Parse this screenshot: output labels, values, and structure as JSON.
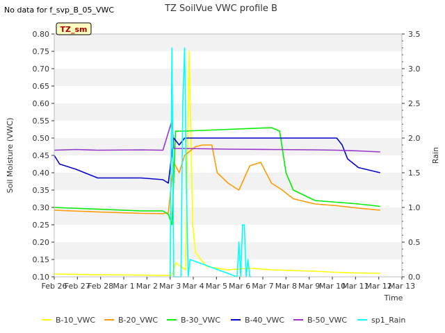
{
  "top_note": "No data for f_svp_B_05_VWC",
  "chart_data": {
    "type": "line",
    "title": "TZ SoilVue VWC profile B",
    "badge": "TZ_sm",
    "xlabel": "Time",
    "ylabel": "Soil Moisture (VWC)",
    "y2label": "Rain",
    "x_ticks": [
      "Feb 26",
      "Feb 27",
      "Feb 28",
      "Mar 1",
      "Mar 2",
      "Mar 3",
      "Mar 4",
      "Mar 5",
      "Mar 6",
      "Mar 7",
      "Mar 8",
      "Mar 9",
      "Mar 10",
      "Mar 11",
      "Mar 12",
      "Mar 13"
    ],
    "xlim": [
      "2024-02-26",
      "2024-03-13"
    ],
    "ylim": [
      0.1,
      0.8
    ],
    "y_ticks": [
      "0.10",
      "0.15",
      "0.20",
      "0.25",
      "0.30",
      "0.35",
      "0.40",
      "0.45",
      "0.50",
      "0.55",
      "0.60",
      "0.65",
      "0.70",
      "0.75",
      "0.80"
    ],
    "y2lim": [
      0.0,
      3.5
    ],
    "y2_ticks": [
      "0.0",
      "0.5",
      "1.0",
      "1.5",
      "2.0",
      "2.5",
      "3.0",
      "3.5"
    ],
    "grid": "horizontal bands",
    "legend_position": "bottom",
    "series": [
      {
        "name": "B-10_VWC",
        "color": "#ffff00",
        "axis": "left",
        "x": [
          "2024-02-26",
          "2024-02-28",
          "2024-03-01",
          "2024-03-02",
          "2024-03-02 10:00",
          "2024-03-02 14:00",
          "2024-03-02 20:00",
          "2024-03-03 01:00",
          "2024-03-03 05:00",
          "2024-03-03 09:00",
          "2024-03-03 12:00",
          "2024-03-03 18:00",
          "2024-03-04",
          "2024-03-05",
          "2024-03-06",
          "2024-03-07",
          "2024-03-08",
          "2024-03-09",
          "2024-03-10",
          "2024-03-11",
          "2024-03-12"
        ],
        "y": [
          0.108,
          0.106,
          0.105,
          0.104,
          0.104,
          0.14,
          0.13,
          0.12,
          0.75,
          0.25,
          0.17,
          0.15,
          0.13,
          0.12,
          0.125,
          0.12,
          0.118,
          0.116,
          0.113,
          0.111,
          0.11
        ]
      },
      {
        "name": "B-20_VWC",
        "color": "#ff9900",
        "axis": "left",
        "x": [
          "2024-02-26",
          "2024-02-28",
          "2024-03-01",
          "2024-03-02",
          "2024-03-02 06:00",
          "2024-03-02 12:00",
          "2024-03-02 18:00",
          "2024-03-03",
          "2024-03-03 12:00",
          "2024-03-03 20:00",
          "2024-03-04 06:00",
          "2024-03-04 12:00",
          "2024-03-05",
          "2024-03-05 12:00",
          "2024-03-06",
          "2024-03-06 12:00",
          "2024-03-07",
          "2024-03-07 12:00",
          "2024-03-08",
          "2024-03-09",
          "2024-03-10",
          "2024-03-11",
          "2024-03-12"
        ],
        "y": [
          0.292,
          0.287,
          0.283,
          0.282,
          0.285,
          0.43,
          0.4,
          0.45,
          0.475,
          0.48,
          0.48,
          0.4,
          0.37,
          0.35,
          0.42,
          0.43,
          0.37,
          0.35,
          0.325,
          0.31,
          0.305,
          0.298,
          0.292
        ]
      },
      {
        "name": "B-30_VWC",
        "color": "#00ee00",
        "axis": "left",
        "x": [
          "2024-02-26",
          "2024-02-28",
          "2024-03-01",
          "2024-03-02",
          "2024-03-02 06:00",
          "2024-03-02 10:00",
          "2024-03-02 14:00",
          "2024-03-03",
          "2024-03-05",
          "2024-03-07",
          "2024-03-07 09:00",
          "2024-03-07 16:00",
          "2024-03-08",
          "2024-03-09",
          "2024-03-10",
          "2024-03-11",
          "2024-03-12"
        ],
        "y": [
          0.3,
          0.295,
          0.29,
          0.29,
          0.28,
          0.25,
          0.52,
          0.52,
          0.525,
          0.53,
          0.52,
          0.4,
          0.35,
          0.32,
          0.315,
          0.31,
          0.303
        ]
      },
      {
        "name": "B-40_VWC",
        "color": "#0000cc",
        "axis": "left",
        "x": [
          "2024-02-26",
          "2024-02-26 06:00",
          "2024-02-27",
          "2024-02-28",
          "2024-03-01",
          "2024-03-02",
          "2024-03-02 06:00",
          "2024-03-02 12:00",
          "2024-03-02 18:00",
          "2024-03-03",
          "2024-03-05",
          "2024-03-07",
          "2024-03-09",
          "2024-03-10",
          "2024-03-10 06:00",
          "2024-03-10 12:00",
          "2024-03-11",
          "2024-03-12"
        ],
        "y": [
          0.45,
          0.425,
          0.41,
          0.385,
          0.385,
          0.38,
          0.37,
          0.5,
          0.48,
          0.5,
          0.5,
          0.5,
          0.5,
          0.5,
          0.48,
          0.44,
          0.415,
          0.4
        ]
      },
      {
        "name": "B-50_VWC",
        "color": "#9933cc",
        "axis": "left",
        "x": [
          "2024-02-26",
          "2024-02-27",
          "2024-02-28",
          "2024-03-01",
          "2024-03-02",
          "2024-03-02 10:00",
          "2024-03-02 12:00",
          "2024-03-03",
          "2024-03-05",
          "2024-03-07",
          "2024-03-09",
          "2024-03-10",
          "2024-03-11",
          "2024-03-12"
        ],
        "y": [
          0.465,
          0.467,
          0.465,
          0.466,
          0.465,
          0.55,
          0.47,
          0.47,
          0.468,
          0.467,
          0.466,
          0.465,
          0.463,
          0.46
        ]
      },
      {
        "name": "sp1_Rain",
        "color": "#00ffff",
        "axis": "right",
        "x": [
          "2024-03-02 08:00",
          "2024-03-02 10:00",
          "2024-03-02 12:00",
          "2024-03-02 20:00",
          "2024-03-02 22:00",
          "2024-03-03",
          "2024-03-03 02:00",
          "2024-03-03 04:00",
          "2024-03-03 06:00",
          "2024-03-05 10:00",
          "2024-03-05 12:00",
          "2024-03-05 14:00",
          "2024-03-05 16:00",
          "2024-03-05 18:00",
          "2024-03-05 20:00",
          "2024-03-05 22:00",
          "2024-03-06",
          "2024-03-06 02:00"
        ],
        "y": [
          0,
          3.3,
          0,
          0,
          2.5,
          3.3,
          1.3,
          0,
          0.25,
          0,
          0.5,
          0,
          0.75,
          0.75,
          0,
          0.25,
          0,
          0
        ]
      }
    ]
  }
}
